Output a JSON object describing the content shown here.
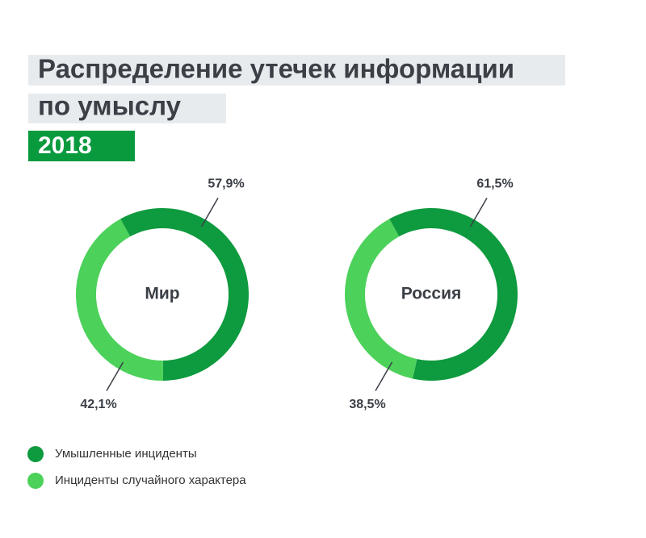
{
  "title_lines": [
    "Распределение утечек информации",
    "по умыслу"
  ],
  "subtitle": "2018",
  "chart_data": [
    {
      "type": "pie",
      "center_label": "Мир",
      "categories": [
        "Умышленные инциденты",
        "Инциденты случайного характера"
      ],
      "values": [
        57.9,
        42.1
      ],
      "value_labels": [
        "57,9%",
        "42,1%"
      ],
      "colors": [
        "#0e9a3e",
        "#4cd15a"
      ]
    },
    {
      "type": "pie",
      "center_label": "Россия",
      "categories": [
        "Умышленные инциденты",
        "Инциденты случайного характера"
      ],
      "values": [
        61.5,
        38.5
      ],
      "value_labels": [
        "61,5%",
        "38,5%"
      ],
      "colors": [
        "#0e9a3e",
        "#4cd15a"
      ]
    }
  ]
}
